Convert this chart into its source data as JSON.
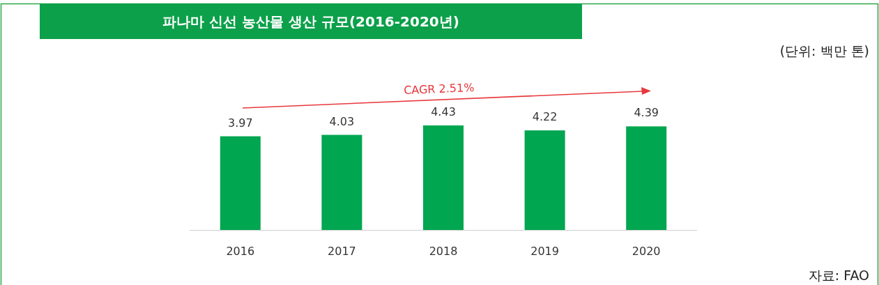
{
  "chart_data": {
    "type": "bar",
    "title": "파나마 신선 농산물 생산 규모(2016-2020년)",
    "subtitle": "(단위: 백만 톤)",
    "categories": [
      "2016",
      "2017",
      "2018",
      "2019",
      "2020"
    ],
    "values": [
      3.97,
      4.03,
      4.43,
      4.22,
      4.39
    ],
    "color": "#00a650",
    "data_labels": true,
    "annotations": [
      "CAGR 2.51%",
      "자료: FAO"
    ]
  }
}
